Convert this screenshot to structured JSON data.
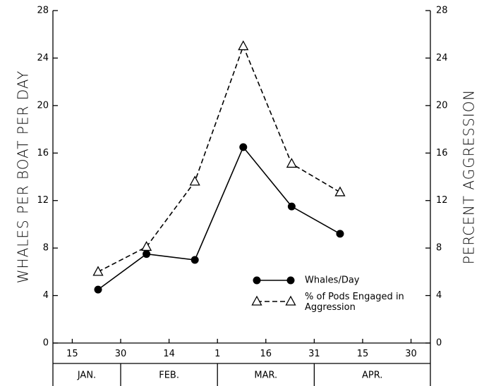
{
  "chart_data": {
    "type": "line",
    "y_label": "WHALES PER BOAT PER DAY",
    "y2_label": "PERCENT AGGRESSION",
    "x": [
      23,
      38,
      53,
      68,
      83,
      98
    ],
    "xlim": [
      9,
      126
    ],
    "xticks": [
      15,
      30,
      {
        "value": 45,
        "label": "14"
      },
      {
        "value": 60,
        "label": "1"
      },
      {
        "value": 75,
        "label": "16"
      },
      {
        "value": 90,
        "label": "31"
      },
      {
        "value": 105,
        "label": "15"
      },
      {
        "value": 120,
        "label": "30"
      }
    ],
    "month_labels": [
      "JAN.",
      "FEB.",
      "MAR.",
      "APR."
    ],
    "ylim": [
      0,
      28
    ],
    "yticks": [
      0,
      4,
      8,
      12,
      16,
      20,
      24,
      28
    ],
    "y2lim": [
      0,
      28
    ],
    "y2ticks": [
      0,
      4,
      8,
      12,
      16,
      20,
      24,
      28
    ],
    "series": [
      {
        "name": "Whales/Day",
        "color": "#000000",
        "marker": "circle",
        "dash": false,
        "values": [
          4.5,
          7.5,
          7.0,
          16.5,
          11.5,
          9.2
        ]
      },
      {
        "name": "% of Pods Engaged in Aggression",
        "color": "#000000",
        "marker": "triangle",
        "dash": true,
        "axis": "y2",
        "values": [
          6.0,
          8.1,
          13.6,
          25.0,
          15.1,
          12.7
        ]
      }
    ]
  }
}
